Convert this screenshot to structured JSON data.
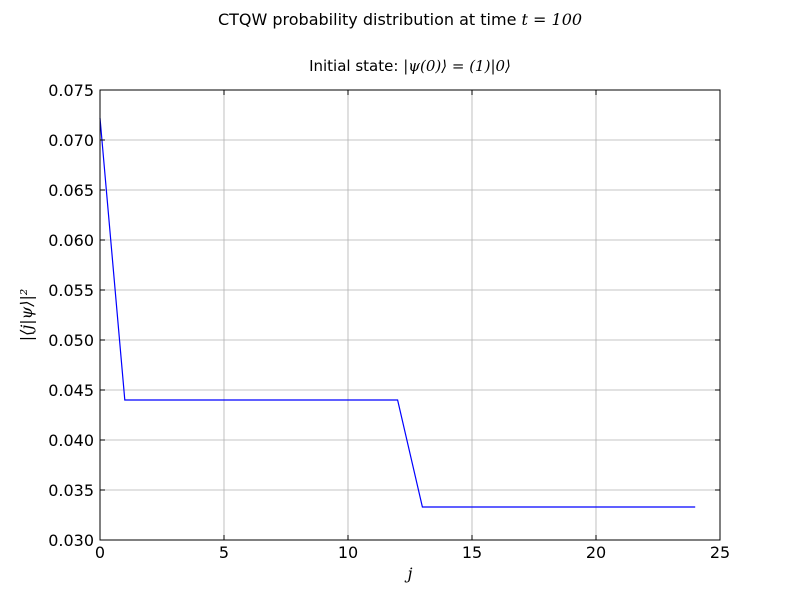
{
  "chart_data": {
    "type": "line",
    "title": "CTQW probability distribution at time t = 100",
    "title_parts": {
      "prefix": "CTQW probability distribution at time ",
      "math": "t = 100"
    },
    "subtitle": "Initial state: |ψ(0)⟩ = (1)|0⟩",
    "subtitle_parts": {
      "prefix": "Initial state: ",
      "math": "|ψ(0)⟩ = (1)|0⟩"
    },
    "xlabel": "j",
    "ylabel": "|⟨j|ψ⟩|²",
    "xlim": [
      0,
      25
    ],
    "ylim": [
      0.03,
      0.075
    ],
    "xticks": [
      0,
      5,
      10,
      15,
      20,
      25
    ],
    "xtick_labels": [
      "0",
      "5",
      "10",
      "15",
      "20",
      "25"
    ],
    "yticks": [
      0.03,
      0.035,
      0.04,
      0.045,
      0.05,
      0.055,
      0.06,
      0.065,
      0.07,
      0.075
    ],
    "ytick_labels": [
      "0.030",
      "0.035",
      "0.040",
      "0.045",
      "0.050",
      "0.055",
      "0.060",
      "0.065",
      "0.070",
      "0.075"
    ],
    "grid": true,
    "legend": "none",
    "line_color": "#0000ff",
    "series": [
      {
        "x": [
          0,
          1,
          2,
          3,
          4,
          5,
          6,
          7,
          8,
          9,
          10,
          11,
          12,
          13,
          14,
          15,
          16,
          17,
          18,
          19,
          20,
          21,
          22,
          23,
          24
        ],
        "y": [
          0.0722,
          0.044,
          0.044,
          0.044,
          0.044,
          0.044,
          0.044,
          0.044,
          0.044,
          0.044,
          0.044,
          0.044,
          0.044,
          0.0333,
          0.0333,
          0.0333,
          0.0333,
          0.0333,
          0.0333,
          0.0333,
          0.0333,
          0.0333,
          0.0333,
          0.0333,
          0.0333
        ]
      }
    ]
  }
}
